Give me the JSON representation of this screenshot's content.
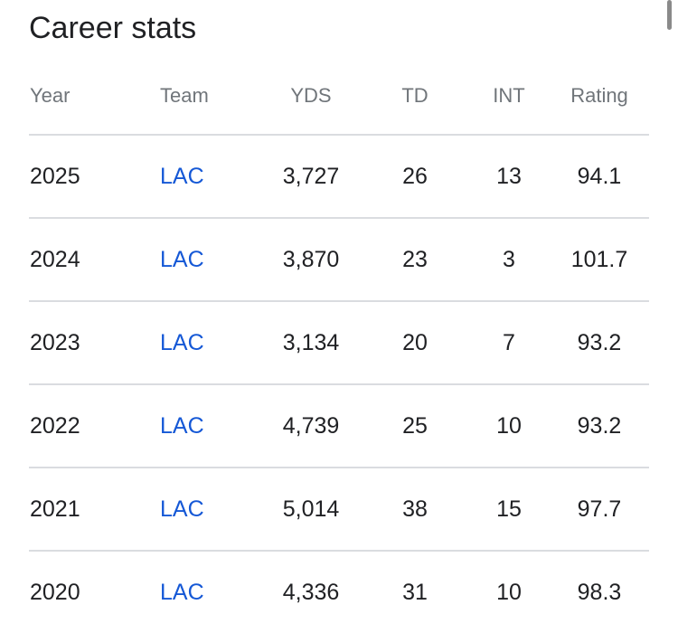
{
  "title": "Career stats",
  "columns": [
    "Year",
    "Team",
    "YDS",
    "TD",
    "INT",
    "Rating"
  ],
  "rows": [
    [
      "2025",
      "LAC",
      "3,727",
      "26",
      "13",
      "94.1"
    ],
    [
      "2024",
      "LAC",
      "3,870",
      "23",
      "3",
      "101.7"
    ],
    [
      "2023",
      "LAC",
      "3,134",
      "20",
      "7",
      "93.2"
    ],
    [
      "2022",
      "LAC",
      "4,739",
      "25",
      "10",
      "93.2"
    ],
    [
      "2021",
      "LAC",
      "5,014",
      "38",
      "15",
      "97.7"
    ],
    [
      "2020",
      "LAC",
      "4,336",
      "31",
      "10",
      "98.3"
    ]
  ]
}
